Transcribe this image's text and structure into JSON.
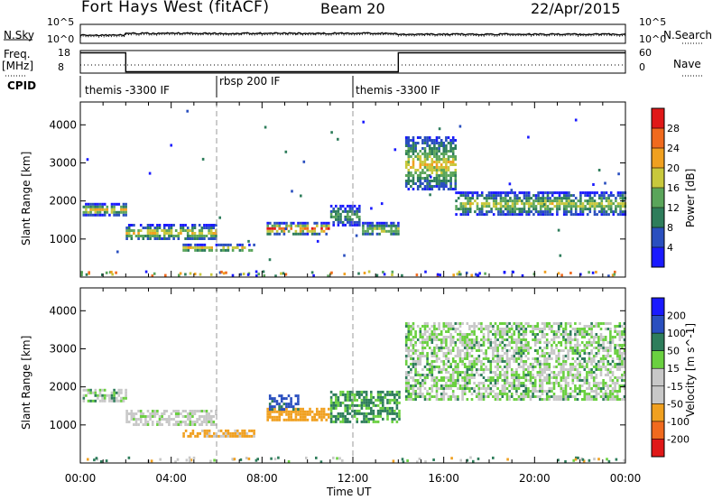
{
  "header": {
    "title": "Fort Hays West (fitACF)",
    "beam": "Beam 20",
    "date": "22/Apr/2015"
  },
  "top_panel": {
    "left_label": "N.Sky",
    "right_label": "N.Search",
    "ytick_top": "10^5",
    "ytick_bottom": "10^0"
  },
  "freq_panel": {
    "left_label": "Freq.",
    "left_unit": "[MHz]",
    "right_label": "Nave",
    "left_ticks": [
      "18",
      "8"
    ],
    "right_ticks": [
      "60",
      "0"
    ]
  },
  "cpid": {
    "label": "CPID",
    "segments": [
      {
        "text": "themis -3300 IF",
        "start_hour": 0
      },
      {
        "text": "rbsp 200 IF",
        "start_hour": 6
      },
      {
        "text": "themis -3300 IF",
        "start_hour": 12
      }
    ]
  },
  "colors": {
    "power_scale": [
      "#1a1aff",
      "#2a4fbf",
      "#2e7d5b",
      "#5aa55a",
      "#c8c83c",
      "#f0a020",
      "#f06a1e",
      "#e01818"
    ],
    "velocity_scale": [
      "#e01818",
      "#f06a1e",
      "#f0a020",
      "#c8c8c8",
      "#c8c8c8",
      "#6ad040",
      "#2e7d5b",
      "#2a4fbf",
      "#1a1aff"
    ]
  },
  "chart_data": [
    {
      "type": "heatmap",
      "name": "power",
      "ylabel": "Slant Range [km]",
      "xlim": [
        0,
        24
      ],
      "ylim": [
        0,
        4600
      ],
      "yticks": [
        1000,
        2000,
        3000,
        4000
      ],
      "colorbar": {
        "label": "Power [dB]",
        "range": [
          0,
          32
        ],
        "ticks": [
          4,
          8,
          12,
          16,
          20,
          24,
          28
        ]
      },
      "regions": [
        {
          "x": [
            0.1,
            2.0
          ],
          "range": [
            1650,
            1950
          ],
          "peak": 22
        },
        {
          "x": [
            2.0,
            6.0
          ],
          "range": [
            1000,
            1400
          ],
          "peak": 20
        },
        {
          "x": [
            4.5,
            7.6
          ],
          "range": [
            700,
            880
          ],
          "peak": 24
        },
        {
          "x": [
            8.2,
            10.9
          ],
          "range": [
            1150,
            1450
          ],
          "peak": 28
        },
        {
          "x": [
            11.0,
            12.3
          ],
          "range": [
            1400,
            1900
          ],
          "peak": 14
        },
        {
          "x": [
            12.4,
            14.0
          ],
          "range": [
            1100,
            1450
          ],
          "peak": 18
        },
        {
          "x": [
            14.3,
            16.5
          ],
          "range": [
            2300,
            3700
          ],
          "peak": 20
        },
        {
          "x": [
            16.5,
            24.0
          ],
          "range": [
            1650,
            2250
          ],
          "peak": 18
        }
      ]
    },
    {
      "type": "heatmap",
      "name": "velocity",
      "ylabel": "Slant Range [km]",
      "xlabel": "Time UT",
      "xlim": [
        0,
        24
      ],
      "ylim": [
        0,
        4600
      ],
      "yticks": [
        1000,
        2000,
        3000,
        4000
      ],
      "xticks": [
        "00:00",
        "04:00",
        "08:00",
        "12:00",
        "16:00",
        "20:00",
        "00:00"
      ],
      "colorbar": {
        "label": "Velocity [m s^-1]",
        "ticks": [
          200,
          100,
          50,
          15,
          -15,
          -50,
          -100,
          -200
        ]
      },
      "regions": [
        {
          "x": [
            0.1,
            2.0
          ],
          "range": [
            1650,
            1950
          ],
          "velocity": 0
        },
        {
          "x": [
            2.0,
            6.0
          ],
          "range": [
            1000,
            1400
          ],
          "velocity": -10
        },
        {
          "x": [
            4.5,
            7.6
          ],
          "range": [
            700,
            880
          ],
          "velocity": -60
        },
        {
          "x": [
            8.2,
            10.9
          ],
          "range": [
            1150,
            1450
          ],
          "velocity": -80
        },
        {
          "x": [
            8.3,
            9.6
          ],
          "range": [
            1400,
            1800
          ],
          "velocity": 60
        },
        {
          "x": [
            11.0,
            14.0
          ],
          "range": [
            1100,
            1900
          ],
          "velocity": 20
        },
        {
          "x": [
            14.3,
            24.0
          ],
          "range": [
            1650,
            3700
          ],
          "velocity": 0
        }
      ]
    }
  ]
}
